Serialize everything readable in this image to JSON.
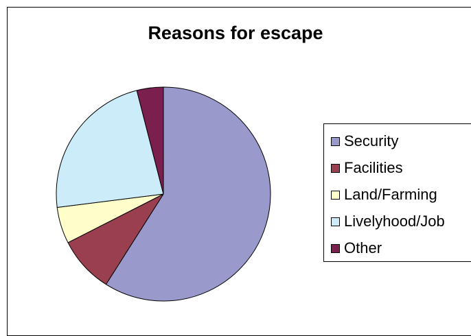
{
  "chart_data": {
    "type": "pie",
    "title": "Reasons for escape",
    "categories": [
      "Security",
      "Facilities",
      "Land/Farming",
      "Livelyhood/Job",
      "Other"
    ],
    "values": [
      59,
      8.5,
      5.5,
      23,
      4
    ],
    "unit": "",
    "colors": [
      "#9999cc",
      "#993f50",
      "#ffffcc",
      "#ccecfa",
      "#7a1f4e"
    ],
    "legend_position": "right",
    "start_angle_deg": 0,
    "direction": "clockwise"
  }
}
